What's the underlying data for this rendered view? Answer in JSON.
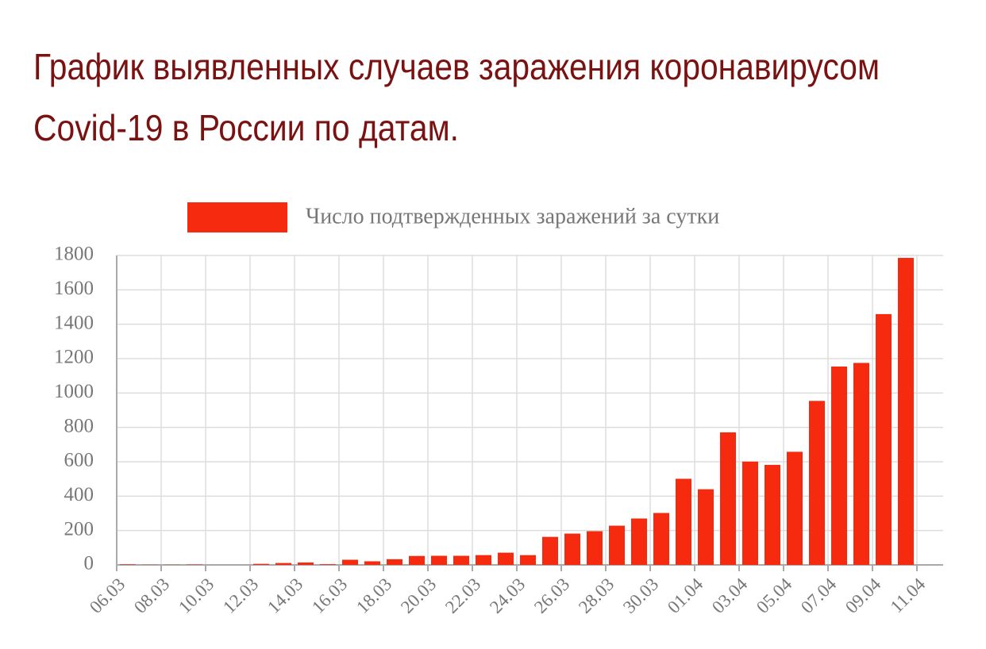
{
  "chart_data": {
    "type": "bar",
    "title": [
      "График выявленных случаев заражения коронавирусом",
      "Covid-19 в России по датам."
    ],
    "categories": [
      "06.03",
      null,
      "08.03",
      null,
      "10.03",
      null,
      "12.03",
      null,
      "14.03",
      null,
      "16.03",
      null,
      "18.03",
      null,
      "20.03",
      null,
      "22.03",
      null,
      "24.03",
      null,
      "26.03",
      null,
      "28.03",
      null,
      "30.03",
      null,
      "01.04",
      null,
      "03.04",
      null,
      "05.04",
      null,
      "07.04",
      null,
      "09.04",
      null,
      "11.04"
    ],
    "series": [
      {
        "name": "Число подтвержденных заражений за сутки",
        "color": "#f52a0f",
        "values": [
          3,
          1,
          1,
          2,
          0,
          0,
          6,
          11,
          14,
          4,
          30,
          21,
          33,
          52,
          53,
          53,
          57,
          71,
          57,
          163,
          182,
          196,
          228,
          270,
          302,
          501,
          440,
          771,
          601,
          582,
          658,
          954,
          1154,
          1175,
          1459,
          1786,
          null
        ]
      }
    ],
    "ylim": [
      0,
      1800
    ],
    "yticks": [
      0,
      200,
      400,
      600,
      800,
      1000,
      1200,
      1400,
      1600,
      1800
    ],
    "grid": true,
    "legend": "top"
  }
}
